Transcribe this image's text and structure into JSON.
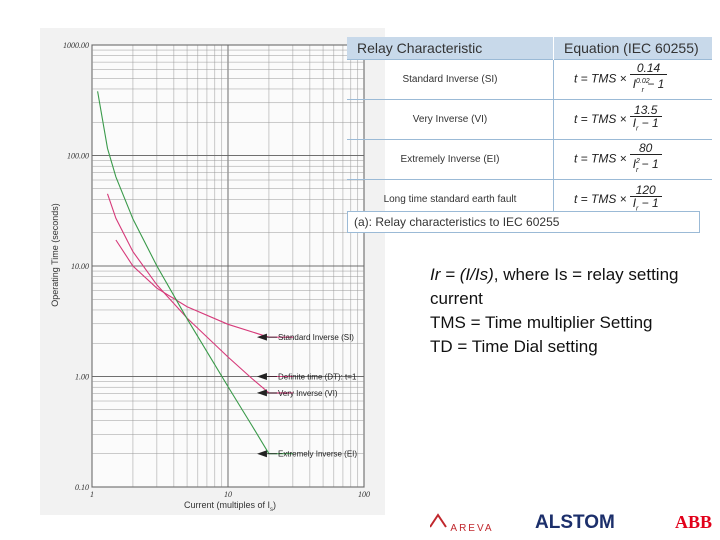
{
  "chart_data": {
    "type": "line",
    "xscale": "log",
    "yscale": "log",
    "xlim": [
      1,
      100
    ],
    "ylim": [
      0.1,
      1000
    ],
    "grid": true,
    "xlabel": "Current (multiples of I",
    "xlabel_sub": "s",
    "xlabel_end": ")",
    "ylabel": "Operating Time (seconds)",
    "x_ticks": [
      "1",
      "10",
      "100"
    ],
    "y_ticks": [
      "1000.00",
      "100.00",
      "10.00",
      "1.00",
      "0.10"
    ],
    "series": [
      {
        "name": "Standard Inverse (SI)",
        "color": "#d63a7a",
        "x": [
          1.5,
          2,
          3,
          5,
          10,
          20,
          30
        ],
        "y": [
          17.2,
          10.0,
          6.3,
          4.28,
          2.97,
          2.27,
          2.27
        ]
      },
      {
        "name": "Definite time (DT): t=1",
        "color": "#d63a7a",
        "x": [
          20,
          30
        ],
        "y": [
          1.0,
          1.0
        ]
      },
      {
        "name": "Very Inverse (VI)",
        "color": "#d63a7a",
        "x": [
          1.3,
          1.5,
          2,
          3,
          5,
          10,
          15,
          20,
          30
        ],
        "y": [
          45,
          27,
          13.5,
          6.75,
          3.38,
          1.5,
          0.96,
          0.71,
          0.71
        ]
      },
      {
        "name": "Extremely Inverse (EI)",
        "color": "#3a9a4a",
        "x": [
          1.1,
          1.3,
          1.5,
          2,
          3,
          5,
          10,
          15,
          20,
          30
        ],
        "y": [
          381,
          116,
          64,
          26.7,
          10,
          3.33,
          0.81,
          0.36,
          0.2,
          0.2
        ]
      }
    ]
  },
  "table": {
    "headers": [
      "Relay Characteristic",
      "Equation (IEC 60255)"
    ],
    "rows": [
      {
        "name": "Standard Inverse (SI)",
        "lhs": "t = TMS ×",
        "num": "0.14",
        "den_base": "I",
        "den_sub": "r",
        "den_sup": "0.02",
        "den_tail": " − 1"
      },
      {
        "name": "Very Inverse (VI)",
        "lhs": "t = TMS ×",
        "num": "13.5",
        "den_base": "I",
        "den_sub": "r",
        "den_sup": "",
        "den_tail": " − 1"
      },
      {
        "name": "Extremely Inverse (EI)",
        "lhs": "t = TMS ×",
        "num": "80",
        "den_base": "I",
        "den_sub": "r",
        "den_sup": "2",
        "den_tail": " − 1"
      },
      {
        "name": "Long time standard earth fault",
        "lhs": "t = TMS ×",
        "num": "120",
        "den_base": "I",
        "den_sub": "r",
        "den_sup": "",
        "den_tail": " − 1"
      }
    ],
    "caption": "(a): Relay characteristics to IEC 60255"
  },
  "notes": {
    "line1_italic": "Ir = (I/Is)",
    "line1_rest": ", where Is = relay setting current",
    "line2": "TMS = Time multiplier Setting",
    "line3": "TD = Time Dial setting"
  },
  "logos": {
    "areva": "AREVA",
    "alstom": "ALSTOM",
    "abb": "ABB",
    "areva_color": "#c0272d",
    "alstom_color": "#1c2f6b",
    "abb_color": "#e2001a"
  }
}
